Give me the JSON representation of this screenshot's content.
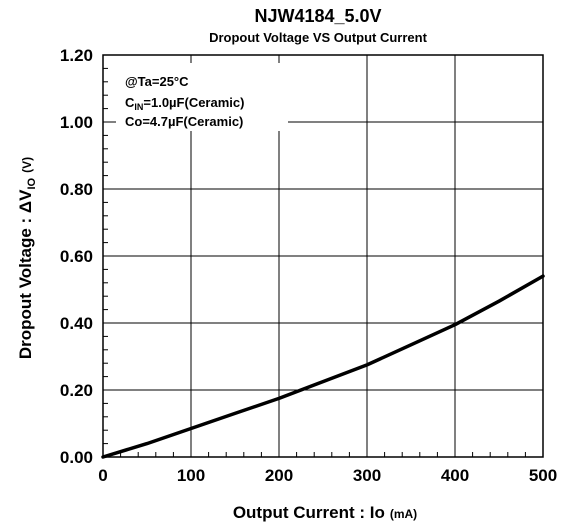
{
  "chart_data": {
    "type": "line",
    "title": "NJW4184_5.0V",
    "subtitle": "Dropout Voltage VS Output Current",
    "xlabel": {
      "main": "Output Current : Io",
      "unit": "(mA)"
    },
    "ylabel": {
      "main": "Dropout Voltage : ",
      "delta": "Δ",
      "v": "V",
      "sub": "IO",
      "unit": "(V)"
    },
    "xlim": [
      0,
      500
    ],
    "ylim": [
      0,
      1.2
    ],
    "x_ticks": [
      0,
      100,
      200,
      300,
      400,
      500
    ],
    "x_tick_labels": [
      "0",
      "100",
      "200",
      "300",
      "400",
      "500"
    ],
    "y_ticks": [
      0,
      0.2,
      0.4,
      0.6,
      0.8,
      1.0,
      1.2
    ],
    "y_tick_labels": [
      "0.00",
      "0.20",
      "0.40",
      "0.60",
      "0.80",
      "1.00",
      "1.20"
    ],
    "grid": true,
    "annotation": {
      "line1": "@Ta=25°C",
      "line2_main": "C",
      "line2_sub": "IN",
      "line2_rest": "=1.0µF(Ceramic)",
      "line3": "Co=4.7µF(Ceramic)"
    },
    "series": [
      {
        "color": "#000000",
        "x": [
          0,
          50,
          100,
          150,
          200,
          250,
          300,
          350,
          400,
          450,
          500
        ],
        "y": [
          0,
          0.04,
          0.085,
          0.13,
          0.175,
          0.225,
          0.275,
          0.335,
          0.395,
          0.465,
          0.54
        ]
      }
    ]
  }
}
